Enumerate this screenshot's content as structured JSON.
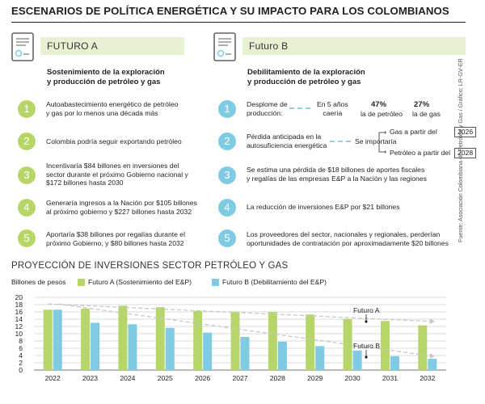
{
  "title": "ESCENARIOS DE POLÍTICA ENERGÉTICA Y SU IMPACTO PARA LOS COLOMBIANOS",
  "colors": {
    "future_a": "#b7d66a",
    "future_b": "#7fcbe3",
    "header_bg": "#e8f1d2",
    "text": "#231f20"
  },
  "future_a": {
    "label": "FUTURO A",
    "subtitle_line1": "Sostenimiento de la exploración",
    "subtitle_line2": "y producción de petróleo y gas",
    "items": [
      {
        "num": "1",
        "line1": "Autoabastecimiento energético de petróleo",
        "line2": "y gas por lo menos una década más",
        "line3": ""
      },
      {
        "num": "2",
        "line1": "Colombia podría seguir exportando petróleo",
        "line2": "",
        "line3": ""
      },
      {
        "num": "3",
        "line1": "Incentivaría $84 billones en inversiones del",
        "line2": "sector durante el próximo Gobierno nacional y",
        "line3": "$172 billones hasta 2030"
      },
      {
        "num": "4",
        "line1": "Generaría ingresos a la Nación por $105 billones",
        "line2": "al próximo gobierno y $227 billones hasta 2032",
        "line3": ""
      },
      {
        "num": "5",
        "line1": "Aportaría $38 billones por regalías durante el",
        "line2": "próximo Gobierno, y $80 billones hasta 2032",
        "line3": ""
      }
    ]
  },
  "future_b": {
    "label": "Futuro B",
    "subtitle_line1": "Debilitamiento de la exploración",
    "subtitle_line2": "y producción de petróleo y gas",
    "item1": {
      "num": "1",
      "label_line1": "Desplome de",
      "label_line2": "producción:",
      "mid_line1": "En 5 años",
      "mid_line2": "caería",
      "pct_oil": "47%",
      "oil_label": "la de petróleo",
      "pct_gas": "27%",
      "gas_label": "la de gas"
    },
    "item2": {
      "num": "2",
      "line1": "Pérdida anticipada en la",
      "line2": "autosuficiencia energética",
      "mid": "Se importaría",
      "gas_from": "Gas a partir del",
      "gas_year": "2026",
      "oil_from": "Petróleo a partir del",
      "oil_year": "2028"
    },
    "items": [
      {
        "num": "3",
        "line1": "Se estima una pérdida de $18 billones de aportes fiscales",
        "line2": "y regalías de las empresas E&P a la Nación y las regiones"
      },
      {
        "num": "4",
        "line1": "La reducción de inversiones E&P por $21 billones",
        "line2": ""
      },
      {
        "num": "5",
        "line1": "Los proveedores del sector, nacionales y regionales, perderían",
        "line2": "oportunidades de contratación por aproximadamente $20 billones"
      }
    ]
  },
  "source": "Fuente: Asociación Colombiana de Petróleo y Gas / Gráfico: LR-GV-ER",
  "chart_data": {
    "type": "bar",
    "title": "PROYECCIÓN DE INVERSIONES SECTOR PETRÓLEO Y GAS",
    "ylabel": "Billones de pesos",
    "ylim": [
      0,
      20
    ],
    "yticks": [
      "0",
      "2",
      "4",
      "6",
      "8",
      "10",
      "12",
      "14",
      "16",
      "18",
      "20"
    ],
    "grid": true,
    "legend_position": "top",
    "categories": [
      "2022",
      "2023",
      "2024",
      "2025",
      "2026",
      "2027",
      "2028",
      "2029",
      "2030",
      "2031",
      "2032"
    ],
    "series": [
      {
        "name": "Futuro A (Sostenimiento del E&P)",
        "values": [
          16.6,
          16.9,
          17.7,
          17.3,
          16.3,
          16.1,
          16.0,
          15.3,
          14.1,
          13.5,
          12.3
        ]
      },
      {
        "name": "Futuro B (Debilitamiento del E&P)",
        "values": [
          16.6,
          13.0,
          12.6,
          11.6,
          10.3,
          9.1,
          7.8,
          6.6,
          5.4,
          3.8,
          3.1
        ]
      }
    ],
    "annotations": [
      "Futuro A",
      "Futuro B"
    ]
  }
}
